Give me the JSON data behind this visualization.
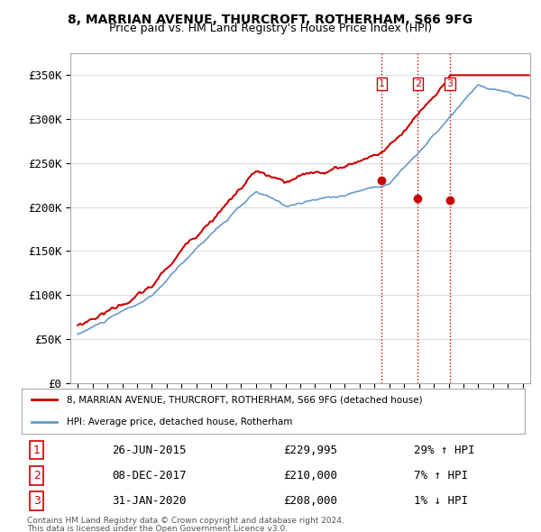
{
  "title": "8, MARRIAN AVENUE, THURCROFT, ROTHERHAM, S66 9FG",
  "subtitle": "Price paid vs. HM Land Registry's House Price Index (HPI)",
  "ylabel": "",
  "ylim": [
    0,
    375000
  ],
  "yticks": [
    0,
    50000,
    100000,
    150000,
    200000,
    250000,
    300000,
    350000
  ],
  "ytick_labels": [
    "£0",
    "£50K",
    "£100K",
    "£150K",
    "£200K",
    "£250K",
    "£300K",
    "£350K"
  ],
  "legend_line1": "8, MARRIAN AVENUE, THURCROFT, ROTHERHAM, S66 9FG (detached house)",
  "legend_line2": "HPI: Average price, detached house, Rotherham",
  "sale1_date": "26-JUN-2015",
  "sale1_price": "£229,995",
  "sale1_hpi": "29% ↑ HPI",
  "sale2_date": "08-DEC-2017",
  "sale2_price": "£210,000",
  "sale2_hpi": "7% ↑ HPI",
  "sale3_date": "31-JAN-2020",
  "sale3_price": "£208,000",
  "sale3_hpi": "1% ↓ HPI",
  "footnote1": "Contains HM Land Registry data © Crown copyright and database right 2024.",
  "footnote2": "This data is licensed under the Open Government Licence v3.0.",
  "red_color": "#cc0000",
  "blue_color": "#6699cc",
  "background_color": "#ffffff",
  "grid_color": "#dddddd",
  "vline_color": "#cc0000",
  "vline_style": ":",
  "sale1_x": 2015.49,
  "sale2_x": 2017.93,
  "sale3_x": 2020.08
}
